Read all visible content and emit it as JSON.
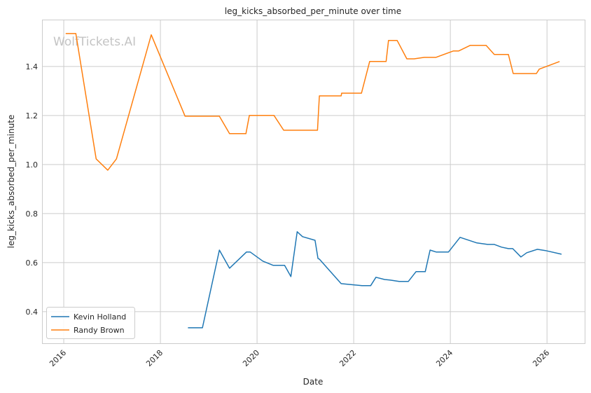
{
  "chart_data": {
    "type": "line",
    "title": "leg_kicks_absorbed_per_minute over time",
    "xlabel": "Date",
    "ylabel": "leg_kicks_absorbed_per_minute",
    "watermark": "WolfTickets.AI",
    "xlim": [
      2015.55,
      2026.78
    ],
    "ylim": [
      0.271,
      1.591
    ],
    "xticks": [
      2016,
      2018,
      2020,
      2022,
      2024,
      2026
    ],
    "xtick_labels": [
      "2016",
      "2018",
      "2020",
      "2022",
      "2024",
      "2026"
    ],
    "yticks": [
      0.4,
      0.6,
      0.8,
      1.0,
      1.2,
      1.4
    ],
    "ytick_labels": [
      "0.4",
      "0.6",
      "0.8",
      "1.0",
      "1.2",
      "1.4"
    ],
    "grid": true,
    "legend_position": "lower-left",
    "series": [
      {
        "name": "Kevin Holland",
        "color": "#1f77b4",
        "x": [
          2018.57,
          2018.87,
          2019.22,
          2019.43,
          2019.78,
          2019.86,
          2020.12,
          2020.33,
          2020.57,
          2020.7,
          2020.83,
          2020.94,
          2021.2,
          2021.26,
          2021.29,
          2021.74,
          2022.17,
          2022.35,
          2022.46,
          2022.64,
          2022.75,
          2022.94,
          2023.13,
          2023.29,
          2023.48,
          2023.58,
          2023.71,
          2023.96,
          2024.2,
          2024.55,
          2024.77,
          2024.91,
          2025.06,
          2025.2,
          2025.29,
          2025.46,
          2025.58,
          2025.8,
          2025.97,
          2026.3
        ],
        "y": [
          0.334,
          0.334,
          0.651,
          0.577,
          0.643,
          0.643,
          0.606,
          0.589,
          0.589,
          0.543,
          0.726,
          0.706,
          0.691,
          0.617,
          0.614,
          0.514,
          0.506,
          0.506,
          0.54,
          0.531,
          0.529,
          0.523,
          0.523,
          0.563,
          0.563,
          0.651,
          0.643,
          0.643,
          0.703,
          0.68,
          0.674,
          0.674,
          0.663,
          0.657,
          0.657,
          0.623,
          0.64,
          0.654,
          0.649,
          0.634
        ]
      },
      {
        "name": "Randy Brown",
        "color": "#ff7f0e",
        "x": [
          2016.04,
          2016.25,
          2016.67,
          2016.91,
          2017.09,
          2017.81,
          2018.51,
          2019.22,
          2019.43,
          2019.77,
          2019.84,
          2020.35,
          2020.55,
          2021.25,
          2021.29,
          2021.74,
          2021.75,
          2022.16,
          2022.33,
          2022.67,
          2022.72,
          2022.9,
          2023.1,
          2023.25,
          2023.46,
          2023.7,
          2024.06,
          2024.17,
          2024.41,
          2024.74,
          2024.91,
          2025.2,
          2025.3,
          2025.78,
          2025.84,
          2026.26
        ],
        "y": [
          1.534,
          1.534,
          1.023,
          0.977,
          1.023,
          1.529,
          1.197,
          1.197,
          1.126,
          1.126,
          1.2,
          1.2,
          1.14,
          1.14,
          1.28,
          1.28,
          1.291,
          1.291,
          1.42,
          1.42,
          1.506,
          1.506,
          1.431,
          1.431,
          1.437,
          1.437,
          1.463,
          1.463,
          1.486,
          1.486,
          1.449,
          1.449,
          1.371,
          1.371,
          1.389,
          1.42
        ]
      }
    ]
  }
}
